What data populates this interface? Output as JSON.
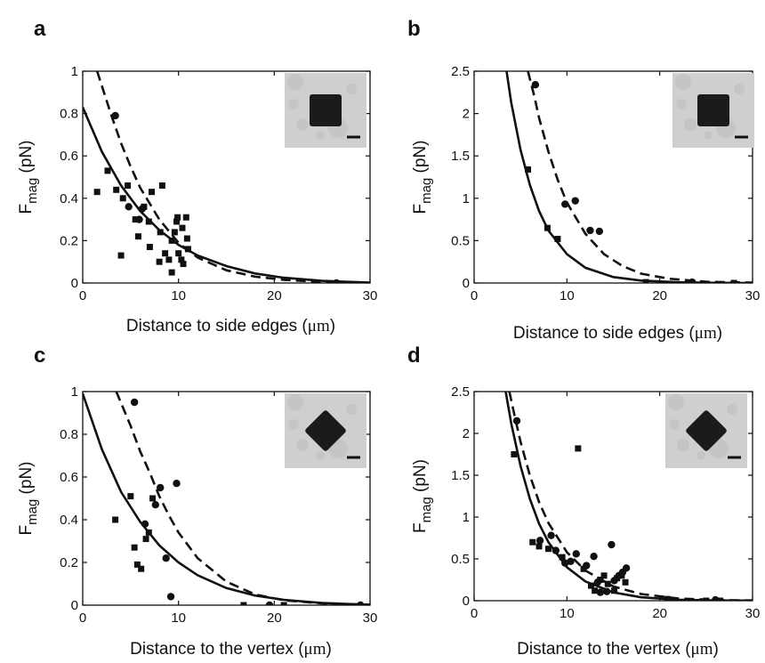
{
  "chart_data": [
    {
      "panel": "a",
      "type": "scatter",
      "xlabel": "Distance to side edges",
      "xunit": "μm",
      "ylabel_main": "F",
      "ylabel_sub": "mag",
      "ylabel_unit": "(pN)",
      "xlim": [
        0,
        30
      ],
      "ylim": [
        0,
        1
      ],
      "xticks": [
        "0",
        "10",
        "20",
        "30"
      ],
      "yticks": [
        "0",
        "0.2",
        "0.4",
        "0.6",
        "0.8",
        "1"
      ],
      "inset": "square",
      "series": [
        {
          "marker": "square",
          "points": [
            [
              1.5,
              0.43
            ],
            [
              2.6,
              0.53
            ],
            [
              3.5,
              0.44
            ],
            [
              4.0,
              0.13
            ],
            [
              4.2,
              0.4
            ],
            [
              4.7,
              0.46
            ],
            [
              5.5,
              0.3
            ],
            [
              5.8,
              0.22
            ],
            [
              6.4,
              0.36
            ],
            [
              6.9,
              0.29
            ],
            [
              7.2,
              0.43
            ],
            [
              7.0,
              0.17
            ],
            [
              8.3,
              0.46
            ],
            [
              8.1,
              0.24
            ],
            [
              8.0,
              0.1
            ],
            [
              8.6,
              0.14
            ],
            [
              9.0,
              0.11
            ],
            [
              9.3,
              0.05
            ],
            [
              9.3,
              0.2
            ],
            [
              9.6,
              0.24
            ],
            [
              9.8,
              0.29
            ],
            [
              9.9,
              0.31
            ],
            [
              10.0,
              0.14
            ],
            [
              10.3,
              0.11
            ],
            [
              10.4,
              0.26
            ],
            [
              10.5,
              0.09
            ],
            [
              10.8,
              0.31
            ],
            [
              10.9,
              0.21
            ],
            [
              11.0,
              0.16
            ]
          ]
        },
        {
          "marker": "circle",
          "points": [
            [
              3.4,
              0.79
            ],
            [
              4.8,
              0.36
            ],
            [
              6.2,
              0.35
            ],
            [
              5.9,
              0.3
            ],
            [
              26.5,
              0.0
            ]
          ]
        }
      ],
      "curves": [
        {
          "style": "solid",
          "points": [
            [
              0,
              0.83
            ],
            [
              2,
              0.62
            ],
            [
              4,
              0.46
            ],
            [
              6,
              0.34
            ],
            [
              8,
              0.25
            ],
            [
              10,
              0.18
            ],
            [
              12,
              0.13
            ],
            [
              15,
              0.08
            ],
            [
              18,
              0.045
            ],
            [
              21,
              0.025
            ],
            [
              25,
              0.01
            ],
            [
              30,
              0.002
            ]
          ]
        },
        {
          "style": "dashed",
          "points": [
            [
              1.5,
              1.0
            ],
            [
              3,
              0.79
            ],
            [
              4,
              0.66
            ],
            [
              5,
              0.55
            ],
            [
              6,
              0.45
            ],
            [
              8,
              0.3
            ],
            [
              10,
              0.19
            ],
            [
              12,
              0.12
            ],
            [
              15,
              0.06
            ],
            [
              18,
              0.03
            ],
            [
              21,
              0.015
            ],
            [
              25,
              0.005
            ],
            [
              30,
              0.001
            ]
          ]
        }
      ]
    },
    {
      "panel": "b",
      "type": "scatter",
      "xlabel": "Distance to side edges",
      "xunit": "μm",
      "ylabel_main": "F",
      "ylabel_sub": "mag",
      "ylabel_unit": "(pN)",
      "xlim": [
        0,
        30
      ],
      "ylim": [
        0,
        2.5
      ],
      "xticks": [
        "0",
        "10",
        "20",
        "30"
      ],
      "yticks": [
        "0",
        "0.5",
        "1",
        "1.5",
        "2",
        "2.5"
      ],
      "inset": "square",
      "series": [
        {
          "marker": "square",
          "points": [
            [
              5.8,
              1.34
            ],
            [
              7.9,
              0.65
            ],
            [
              9.0,
              0.52
            ],
            [
              18.5,
              0.01
            ],
            [
              23.5,
              0.0
            ],
            [
              28.0,
              0.0
            ]
          ]
        },
        {
          "marker": "circle",
          "points": [
            [
              6.6,
              2.34
            ],
            [
              9.8,
              0.93
            ],
            [
              10.9,
              0.97
            ],
            [
              12.5,
              0.62
            ],
            [
              13.5,
              0.61
            ],
            [
              23.5,
              0.01
            ]
          ]
        }
      ],
      "curves": [
        {
          "style": "solid",
          "points": [
            [
              3.5,
              2.5
            ],
            [
              4,
              2.13
            ],
            [
              5,
              1.57
            ],
            [
              6,
              1.16
            ],
            [
              7,
              0.85
            ],
            [
              8,
              0.62
            ],
            [
              10,
              0.34
            ],
            [
              12,
              0.18
            ],
            [
              15,
              0.07
            ],
            [
              18,
              0.028
            ],
            [
              22,
              0.008
            ],
            [
              26,
              0.002
            ],
            [
              30,
              0.0005
            ]
          ]
        },
        {
          "style": "dashed",
          "points": [
            [
              5.8,
              2.5
            ],
            [
              6.5,
              2.2
            ],
            [
              7,
              1.95
            ],
            [
              8,
              1.55
            ],
            [
              9,
              1.22
            ],
            [
              10,
              0.95
            ],
            [
              12,
              0.58
            ],
            [
              14,
              0.34
            ],
            [
              16,
              0.2
            ],
            [
              18,
              0.11
            ],
            [
              21,
              0.05
            ],
            [
              25,
              0.015
            ],
            [
              30,
              0.004
            ]
          ]
        }
      ]
    },
    {
      "panel": "c",
      "type": "scatter",
      "xlabel": "Distance to the vertex",
      "xunit": "μm",
      "ylabel_main": "F",
      "ylabel_sub": "mag",
      "ylabel_unit": "(pN)",
      "xlim": [
        0,
        30
      ],
      "ylim": [
        0,
        1
      ],
      "xticks": [
        "0",
        "10",
        "20",
        "30"
      ],
      "yticks": [
        "0",
        "0.2",
        "0.4",
        "0.6",
        "0.8",
        "1"
      ],
      "inset": "diamond",
      "series": [
        {
          "marker": "square",
          "points": [
            [
              3.4,
              0.4
            ],
            [
              5.0,
              0.51
            ],
            [
              5.4,
              0.27
            ],
            [
              5.7,
              0.19
            ],
            [
              6.1,
              0.17
            ],
            [
              6.6,
              0.31
            ],
            [
              6.9,
              0.34
            ],
            [
              7.3,
              0.5
            ],
            [
              16.8,
              0.0
            ],
            [
              21.0,
              0.0
            ]
          ]
        },
        {
          "marker": "circle",
          "points": [
            [
              5.4,
              0.95
            ],
            [
              6.5,
              0.38
            ],
            [
              7.6,
              0.47
            ],
            [
              8.1,
              0.55
            ],
            [
              8.7,
              0.22
            ],
            [
              9.2,
              0.04
            ],
            [
              9.8,
              0.57
            ],
            [
              19.5,
              0.0
            ],
            [
              29.0,
              0.0
            ]
          ]
        }
      ],
      "curves": [
        {
          "style": "solid",
          "points": [
            [
              0,
              0.99
            ],
            [
              2,
              0.73
            ],
            [
              4,
              0.53
            ],
            [
              6,
              0.39
            ],
            [
              8,
              0.28
            ],
            [
              10,
              0.2
            ],
            [
              12,
              0.14
            ],
            [
              15,
              0.08
            ],
            [
              18,
              0.045
            ],
            [
              21,
              0.025
            ],
            [
              25,
              0.01
            ],
            [
              30,
              0.002
            ]
          ]
        },
        {
          "style": "dashed",
          "points": [
            [
              3.5,
              1.0
            ],
            [
              5,
              0.84
            ],
            [
              6,
              0.72
            ],
            [
              7,
              0.62
            ],
            [
              8,
              0.51
            ],
            [
              9,
              0.42
            ],
            [
              10,
              0.34
            ],
            [
              12,
              0.22
            ],
            [
              15,
              0.11
            ],
            [
              18,
              0.05
            ],
            [
              21,
              0.023
            ],
            [
              25,
              0.008
            ],
            [
              30,
              0.002
            ]
          ]
        }
      ]
    },
    {
      "panel": "d",
      "type": "scatter",
      "xlabel": "Distance to the vertex",
      "xunit": "μm",
      "ylabel_main": "F",
      "ylabel_sub": "mag",
      "ylabel_unit": "(pN)",
      "xlim": [
        0,
        30
      ],
      "ylim": [
        0,
        2.5
      ],
      "xticks": [
        "0",
        "10",
        "20",
        "30"
      ],
      "yticks": [
        "0",
        "0.5",
        "1",
        "1.5",
        "2",
        "2.5"
      ],
      "inset": "diamond",
      "series": [
        {
          "marker": "square",
          "points": [
            [
              4.3,
              1.75
            ],
            [
              6.3,
              0.7
            ],
            [
              7.0,
              0.65
            ],
            [
              8.0,
              0.62
            ],
            [
              9.5,
              0.52
            ],
            [
              11.2,
              1.82
            ],
            [
              11.8,
              0.38
            ],
            [
              12.6,
              0.18
            ],
            [
              13.0,
              0.12
            ],
            [
              13.6,
              0.25
            ],
            [
              14.0,
              0.3
            ],
            [
              14.4,
              0.2
            ],
            [
              15.1,
              0.12
            ],
            [
              15.4,
              0.27
            ],
            [
              15.9,
              0.3
            ],
            [
              16.3,
              0.22
            ],
            [
              20.8,
              0.02
            ],
            [
              25.0,
              0.0
            ],
            [
              26.5,
              0.0
            ]
          ]
        },
        {
          "marker": "circle",
          "points": [
            [
              4.6,
              2.15
            ],
            [
              7.1,
              0.72
            ],
            [
              8.3,
              0.78
            ],
            [
              8.8,
              0.6
            ],
            [
              9.8,
              0.45
            ],
            [
              10.4,
              0.47
            ],
            [
              11.0,
              0.56
            ],
            [
              12.1,
              0.42
            ],
            [
              12.9,
              0.53
            ],
            [
              13.3,
              0.22
            ],
            [
              13.6,
              0.1
            ],
            [
              14.3,
              0.11
            ],
            [
              14.8,
              0.67
            ],
            [
              15.1,
              0.24
            ],
            [
              15.6,
              0.3
            ],
            [
              16.0,
              0.34
            ],
            [
              16.4,
              0.39
            ],
            [
              26.0,
              0.01
            ]
          ]
        }
      ],
      "curves": [
        {
          "style": "solid",
          "points": [
            [
              3.4,
              2.5
            ],
            [
              4,
              2.12
            ],
            [
              5,
              1.61
            ],
            [
              6,
              1.22
            ],
            [
              7,
              0.92
            ],
            [
              8,
              0.7
            ],
            [
              10,
              0.4
            ],
            [
              12,
              0.23
            ],
            [
              15,
              0.1
            ],
            [
              18,
              0.04
            ],
            [
              22,
              0.012
            ],
            [
              26,
              0.003
            ],
            [
              30,
              0.001
            ]
          ]
        },
        {
          "style": "dashed",
          "points": [
            [
              3.8,
              2.5
            ],
            [
              4.5,
              2.14
            ],
            [
              5,
              1.9
            ],
            [
              6,
              1.5
            ],
            [
              7,
              1.18
            ],
            [
              8,
              0.93
            ],
            [
              10,
              0.58
            ],
            [
              12,
              0.36
            ],
            [
              15,
              0.17
            ],
            [
              18,
              0.08
            ],
            [
              22,
              0.027
            ],
            [
              26,
              0.009
            ],
            [
              30,
              0.003
            ]
          ]
        }
      ]
    }
  ]
}
